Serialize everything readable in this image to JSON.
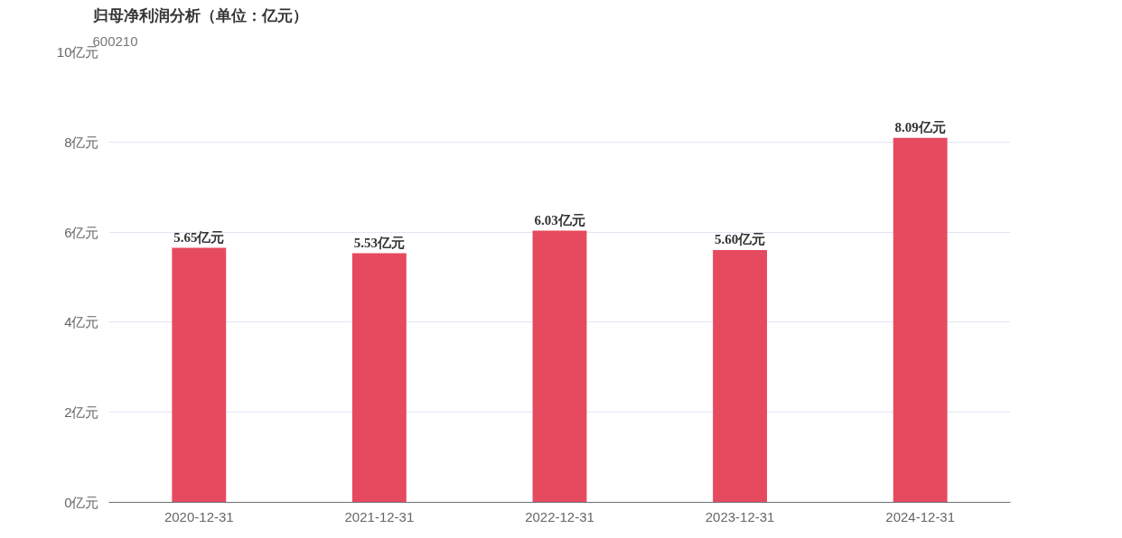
{
  "chart_data": {
    "type": "bar",
    "title": "归母净利润分析（单位：亿元）",
    "subtitle": "600210",
    "categories": [
      "2020-12-31",
      "2021-12-31",
      "2022-12-31",
      "2023-12-31",
      "2024-12-31"
    ],
    "values": [
      5.65,
      5.53,
      6.03,
      5.6,
      8.09
    ],
    "value_labels": [
      "5.65亿元",
      "5.53亿元",
      "6.03亿元",
      "5.60亿元",
      "8.09亿元"
    ],
    "color": "#e64a5f",
    "ylim": [
      0,
      10
    ],
    "yticks": [
      {
        "value": 0,
        "label": "0亿元"
      },
      {
        "value": 2,
        "label": "2亿元"
      },
      {
        "value": 4,
        "label": "4亿元"
      },
      {
        "value": 6,
        "label": "6亿元"
      },
      {
        "value": 8,
        "label": "8亿元"
      },
      {
        "value": 10,
        "label": "10亿元"
      }
    ],
    "grid": "y"
  }
}
